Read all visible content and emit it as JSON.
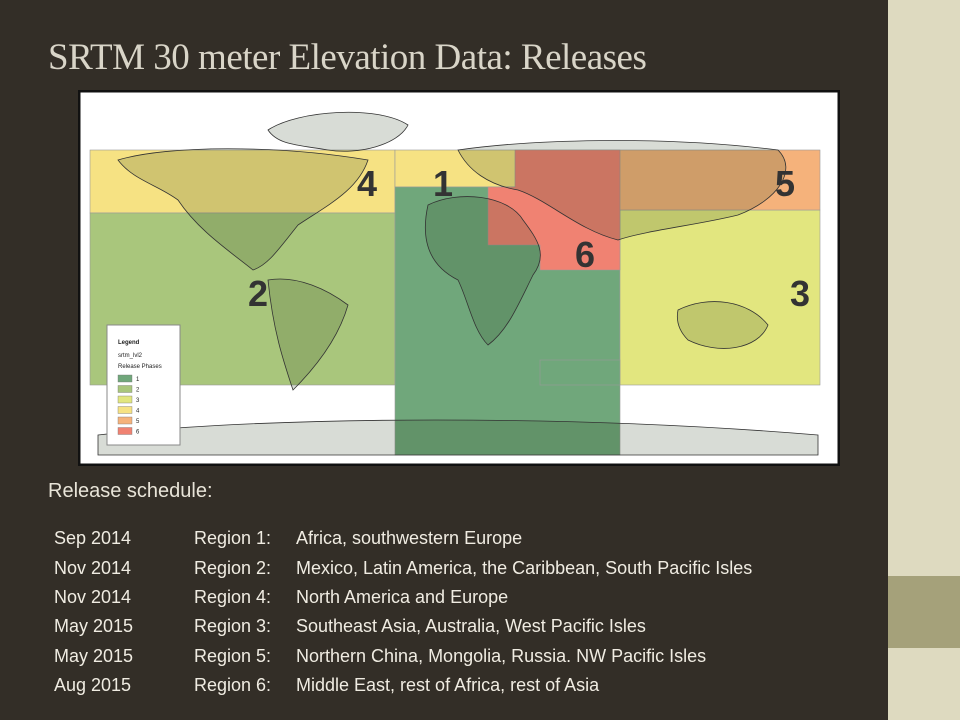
{
  "header": {
    "title": "SRTM 30 meter Elevation Data: Releases"
  },
  "map": {
    "region_labels": [
      "1",
      "2",
      "3",
      "4",
      "5",
      "6"
    ],
    "legend": {
      "title": "Legend",
      "layer": "srtm_lvl2",
      "field": "Release Phases",
      "entries": [
        "1",
        "2",
        "3",
        "4",
        "5",
        "6"
      ]
    }
  },
  "schedule": {
    "caption": "Release schedule:",
    "rows": [
      [
        "Sep 2014",
        "Region 1:",
        "Africa, southwestern Europe"
      ],
      [
        "Nov 2014",
        "Region 2:",
        "Mexico, Latin America, the Caribbean, South Pacific Isles"
      ],
      [
        "Nov 2014",
        "Region 4:",
        "North America and Europe"
      ],
      [
        "May 2015",
        "Region 3:",
        "Southeast Asia, Australia, West Pacific Isles"
      ],
      [
        "May 2015",
        "Region 5:",
        "Northern China, Mongolia, Russia. NW Pacific Isles"
      ],
      [
        "Aug 2015",
        "Region 6:",
        "Middle East, rest of Africa, rest of Asia"
      ]
    ]
  }
}
